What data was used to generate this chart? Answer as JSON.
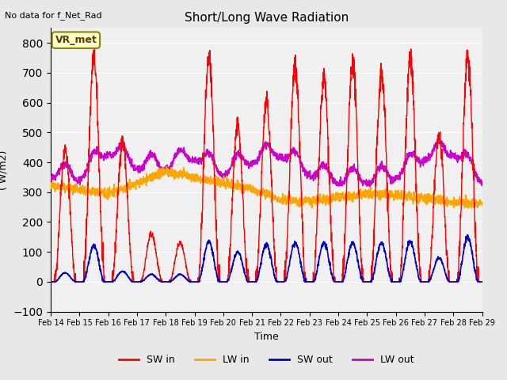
{
  "title": "Short/Long Wave Radiation",
  "xlabel": "Time",
  "ylabel": "( W/m2)",
  "note": "No data for f_Net_Rad",
  "legend_label": "VR_met",
  "ylim": [
    -100,
    850
  ],
  "yticks": [
    -100,
    0,
    100,
    200,
    300,
    400,
    500,
    600,
    700,
    800
  ],
  "series_colors": {
    "SW_in": "#ff0000",
    "LW_in": "#ffa500",
    "SW_out": "#0000cc",
    "LW_out": "#cc00cc"
  },
  "legend_items": [
    "SW in",
    "LW in",
    "SW out",
    "LW out"
  ],
  "bg_color": "#e8e8e8",
  "plot_bg": "#f0f0f0",
  "start_day": 14,
  "end_day": 29,
  "days": 15,
  "points_per_day": 144,
  "sw_peaks": [
    445,
    750,
    470,
    160,
    130,
    750,
    525,
    600,
    720,
    680,
    730,
    700,
    750,
    490,
    760
  ],
  "sw_out_peaks": [
    30,
    120,
    35,
    25,
    25,
    135,
    100,
    125,
    130,
    130,
    130,
    130,
    135,
    80,
    150
  ],
  "lw_in_values": [
    320,
    310,
    295,
    330,
    370,
    350,
    330,
    310,
    275,
    270,
    285,
    295,
    290,
    280,
    265,
    265
  ],
  "lw_out_values": [
    350,
    340,
    430,
    380,
    375,
    410,
    355,
    400,
    420,
    355,
    330,
    330,
    345,
    410,
    425,
    330
  ]
}
